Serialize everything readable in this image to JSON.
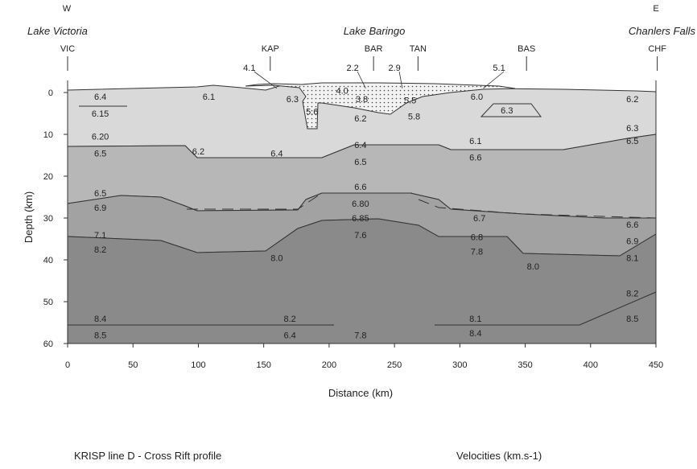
{
  "directions": {
    "west": "W",
    "east": "E"
  },
  "places": {
    "west": "Lake Victoria",
    "center": "Lake Baringo",
    "east": "Chanlers Falls"
  },
  "stations": [
    {
      "label": "VIC",
      "x": 0
    },
    {
      "label": "KAP",
      "x": 155
    },
    {
      "label": "BAR",
      "x": 234
    },
    {
      "label": "TAN",
      "x": 268
    },
    {
      "label": "BAS",
      "x": 351
    },
    {
      "label": "CHF",
      "x": 451
    }
  ],
  "axes": {
    "xlabel": "Distance (km)",
    "ylabel": "Depth (km)",
    "xlim": [
      0,
      450
    ],
    "ylim": [
      0,
      60
    ],
    "xticks": [
      "0",
      "50",
      "100",
      "150",
      "200",
      "250",
      "300",
      "350",
      "400",
      "450"
    ],
    "yticks": [
      "0",
      "10",
      "20",
      "30",
      "40",
      "50",
      "60"
    ]
  },
  "velocity_labels": [
    {
      "text": "6.4",
      "x": 25,
      "y": 1
    },
    {
      "text": "6.15",
      "x": 25,
      "y": 5
    },
    {
      "text": "6.1",
      "x": 108,
      "y": 1
    },
    {
      "text": "6.3",
      "x": 172,
      "y": 1.5
    },
    {
      "text": "4.1",
      "x": 139,
      "y": -6
    },
    {
      "text": "2.2",
      "x": 218,
      "y": -6
    },
    {
      "text": "2.9",
      "x": 250,
      "y": -6
    },
    {
      "text": "5.1",
      "x": 330,
      "y": -6
    },
    {
      "text": "4.0",
      "x": 210,
      "y": -0.5
    },
    {
      "text": "3.8",
      "x": 225,
      "y": 1.5
    },
    {
      "text": "5.5",
      "x": 262,
      "y": 1.8
    },
    {
      "text": "5.6",
      "x": 187,
      "y": 4.5
    },
    {
      "text": "5.8",
      "x": 265,
      "y": 5.7
    },
    {
      "text": "6.2",
      "x": 224,
      "y": 6.2
    },
    {
      "text": "6.0",
      "x": 313,
      "y": 1
    },
    {
      "text": "6.3",
      "x": 336,
      "y": 4.2
    },
    {
      "text": "6.2",
      "x": 432,
      "y": 1.5
    },
    {
      "text": "6.3",
      "x": 432,
      "y": 8.5
    },
    {
      "text": "6.5",
      "x": 432,
      "y": 11.5
    },
    {
      "text": "6.20",
      "x": 25,
      "y": 10.5
    },
    {
      "text": "6.5",
      "x": 25,
      "y": 14.5
    },
    {
      "text": "6.2",
      "x": 100,
      "y": 14
    },
    {
      "text": "6.4",
      "x": 160,
      "y": 14.5
    },
    {
      "text": "6.4",
      "x": 224,
      "y": 12.5
    },
    {
      "text": "6.5",
      "x": 224,
      "y": 16.5
    },
    {
      "text": "6.1",
      "x": 312,
      "y": 11.5
    },
    {
      "text": "6.6",
      "x": 312,
      "y": 15.5
    },
    {
      "text": "6.5",
      "x": 25,
      "y": 24
    },
    {
      "text": "6.9",
      "x": 25,
      "y": 27.5
    },
    {
      "text": "6.6",
      "x": 224,
      "y": 22.5
    },
    {
      "text": "6.80",
      "x": 224,
      "y": 26.5
    },
    {
      "text": "6.85",
      "x": 224,
      "y": 30
    },
    {
      "text": "7.6",
      "x": 224,
      "y": 34
    },
    {
      "text": "6.7",
      "x": 315,
      "y": 30
    },
    {
      "text": "6.6",
      "x": 432,
      "y": 31.5
    },
    {
      "text": "7.1",
      "x": 25,
      "y": 34
    },
    {
      "text": "8.2",
      "x": 25,
      "y": 37.5
    },
    {
      "text": "6.8",
      "x": 313,
      "y": 34.5
    },
    {
      "text": "7.8",
      "x": 313,
      "y": 38
    },
    {
      "text": "6.9",
      "x": 432,
      "y": 35.5
    },
    {
      "text": "8.0",
      "x": 160,
      "y": 39.5
    },
    {
      "text": "8.0",
      "x": 356,
      "y": 41.5
    },
    {
      "text": "8.1",
      "x": 432,
      "y": 39.5
    },
    {
      "text": "8.2",
      "x": 432,
      "y": 48
    },
    {
      "text": "8.5",
      "x": 432,
      "y": 54
    },
    {
      "text": "8.4",
      "x": 25,
      "y": 54
    },
    {
      "text": "8.5",
      "x": 25,
      "y": 58
    },
    {
      "text": "8.2",
      "x": 170,
      "y": 54
    },
    {
      "text": "6.4",
      "x": 170,
      "y": 58
    },
    {
      "text": "7.8",
      "x": 224,
      "y": 58
    },
    {
      "text": "8.1",
      "x": 312,
      "y": 54
    },
    {
      "text": "8.4",
      "x": 312,
      "y": 57.5
    }
  ],
  "captions": {
    "left": "KRISP line D - Cross Rift profile",
    "right": "Velocities (km.s-1)"
  },
  "colors": {
    "layer1": "#d9d9d9",
    "layer2": "#b7b7b7",
    "layer3": "#a2a2a2",
    "mantle": "#8a8a8a",
    "basin": "#f2f2f2",
    "line": "#333333"
  }
}
